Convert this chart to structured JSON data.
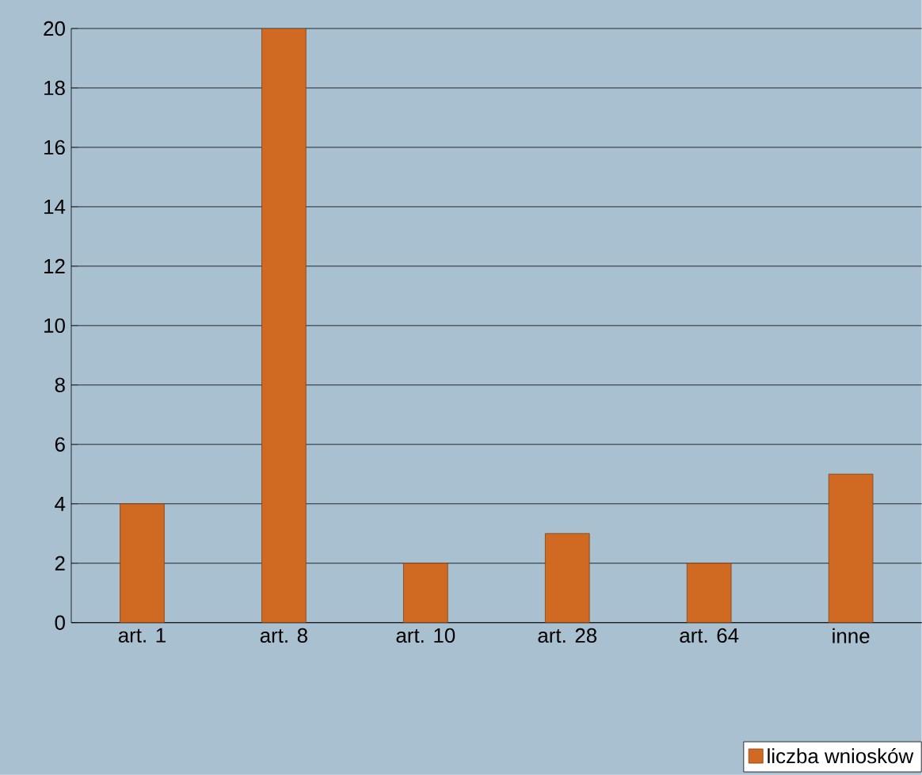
{
  "chart_data": {
    "type": "bar",
    "categories": [
      "art. 1",
      "art. 8",
      "art. 10",
      "art. 28",
      "art. 64",
      "inne"
    ],
    "series": [
      {
        "name": "liczba wniosków",
        "color": "#d06a22",
        "values": [
          4,
          20,
          2,
          3,
          2,
          5
        ]
      }
    ],
    "ylim": [
      0,
      20
    ],
    "yticks": [
      0,
      2,
      4,
      6,
      8,
      10,
      12,
      14,
      16,
      18,
      20
    ],
    "grid": "y",
    "legend": "bottom right"
  }
}
